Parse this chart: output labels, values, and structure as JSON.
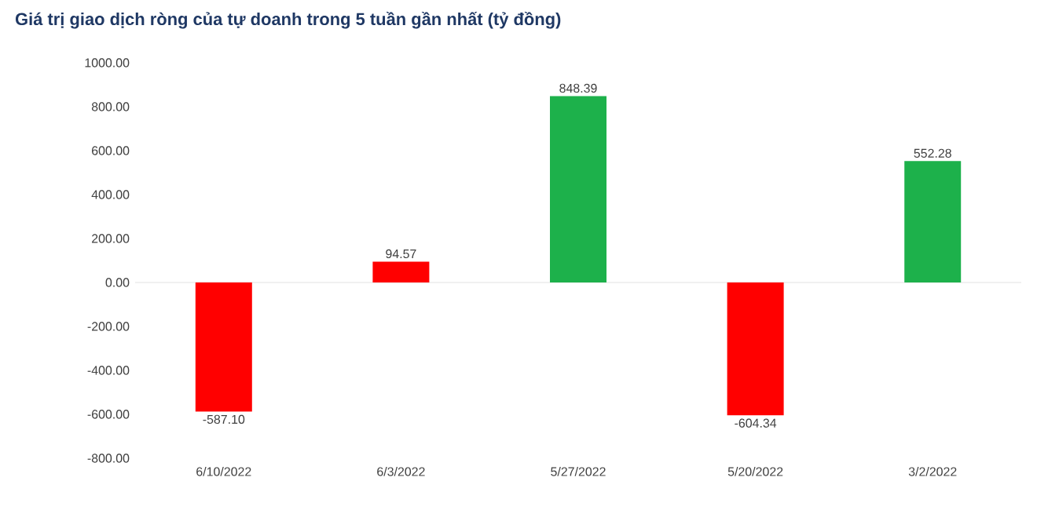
{
  "chart_data": {
    "type": "bar",
    "title": "Giá trị giao dịch ròng của tự doanh trong 5 tuần gần nhất (tỷ đồng)",
    "categories": [
      "6/10/2022",
      "6/3/2022",
      "5/27/2022",
      "5/20/2022",
      "3/2/2022"
    ],
    "values": [
      -587.1,
      94.57,
      848.39,
      -604.34,
      552.28
    ],
    "colors": [
      "#ff0000",
      "#ff0000",
      "#1db14b",
      "#ff0000",
      "#1db14b"
    ],
    "value_labels": [
      "-587.10",
      "94.57",
      "848.39",
      "-604.34",
      "552.28"
    ],
    "ylim": [
      -800,
      1000
    ],
    "yticks": [
      {
        "value": -800,
        "label": "-800.00"
      },
      {
        "value": -600,
        "label": "-600.00"
      },
      {
        "value": -400,
        "label": "-400.00"
      },
      {
        "value": -200,
        "label": "-200.00"
      },
      {
        "value": 0,
        "label": "0.00"
      },
      {
        "value": 200,
        "label": "200.00"
      },
      {
        "value": 400,
        "label": "400.00"
      },
      {
        "value": 600,
        "label": "600.00"
      },
      {
        "value": 800,
        "label": "800.00"
      },
      {
        "value": 1000,
        "label": "1000.00"
      }
    ],
    "ref_lines": [
      {
        "axis": "y",
        "value": 0,
        "color": "#d9d9d9"
      }
    ]
  }
}
